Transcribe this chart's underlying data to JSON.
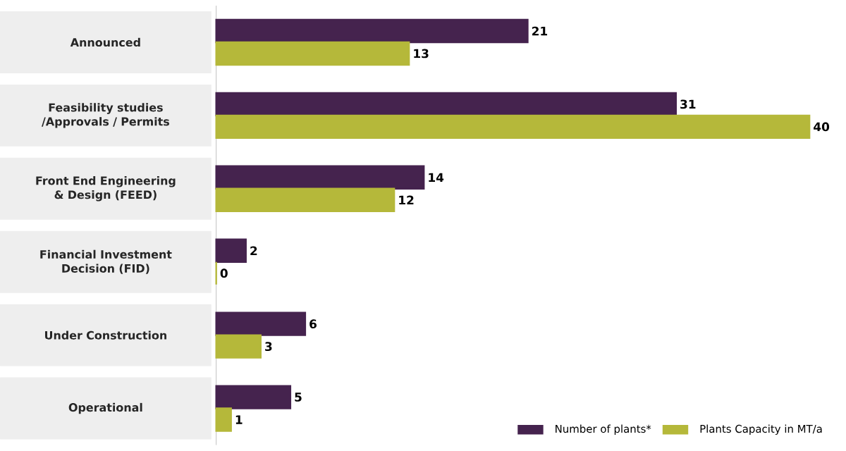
{
  "chart_data": {
    "type": "bar",
    "orientation": "horizontal",
    "data_labels": true,
    "legend": "bottom right",
    "categories": [
      "Announced",
      "Feasibility studies /Approvals / Permits",
      "Front End Engineering & Design (FEED)",
      "Financial Investment Decision (FID)",
      "Under Construction",
      "Operational"
    ],
    "series": [
      {
        "name": "Number of plants*",
        "color": "#45234e",
        "values": [
          21,
          31,
          14,
          2,
          6,
          5
        ]
      },
      {
        "name": "Plants Capacity in MT/a",
        "color": "#b5b83a",
        "values": [
          13,
          40,
          12,
          0,
          3,
          1
        ]
      }
    ]
  }
}
